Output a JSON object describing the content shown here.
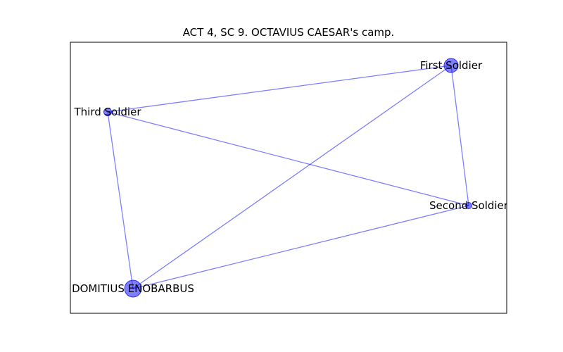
{
  "figure": {
    "title": "ACT 4, SC 9. OCTAVIUS CAESAR's camp."
  },
  "graph": {
    "node_color": "#0000ff",
    "edge_color": "#0000ff",
    "frame_color": "#000000",
    "nodes": [
      {
        "id": "first-soldier",
        "label": "First Soldier",
        "degree": 3
      },
      {
        "id": "third-soldier",
        "label": "Third Soldier",
        "degree": 3
      },
      {
        "id": "second-soldier",
        "label": "Second Soldier",
        "degree": 3
      },
      {
        "id": "domitius-enobarbus",
        "label": "DOMITIUS ENOBARBUS",
        "degree": 3
      }
    ],
    "edges": [
      {
        "source": "third-soldier",
        "target": "first-soldier"
      },
      {
        "source": "first-soldier",
        "target": "second-soldier"
      },
      {
        "source": "first-soldier",
        "target": "domitius-enobarbus"
      },
      {
        "source": "third-soldier",
        "target": "second-soldier"
      },
      {
        "source": "third-soldier",
        "target": "domitius-enobarbus"
      },
      {
        "source": "second-soldier",
        "target": "domitius-enobarbus"
      }
    ]
  }
}
